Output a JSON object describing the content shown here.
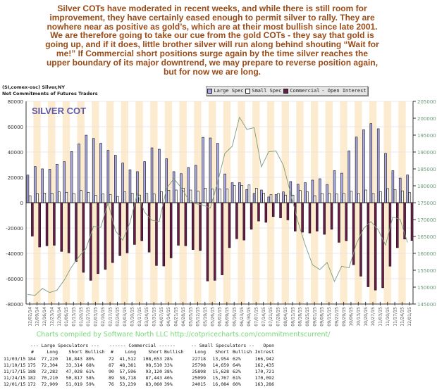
{
  "commentary": "Silver COTs have moderated in recent weeks, and while there is still room for improvement, they have certainly eased enough to permit silver to rally. They are nowhere near as positive as gold’s, which are at their most bullish since late 2001. We are therefore going to take our cue from the gold COTs - they say that gold is going up, and if it does, little brother silver will run along behind shouting “Wait for me!” If Commercial short positions surge again by the time silver reaches the upper boundary of its major downtrend, we may prepare to reverse position again, but for now we are long.",
  "header": {
    "symbol": "(SI,comex-osc) Silver,NY",
    "subtitle": "Net Commitments of Futures Traders"
  },
  "legend": [
    {
      "label": "Large Spec",
      "color": "#a9a9e8"
    },
    {
      "label": "Small Spec",
      "color": "#ffffff"
    },
    {
      "label": "Commercial",
      "color": "#6b1a4a"
    },
    {
      "label": "Open Interest",
      "color": "#7a9a7a",
      "line": true
    }
  ],
  "credit": "Charts compiled by Software North LLC  http://cotpricecharts.com/commitmentscurrent/",
  "chart_data": {
    "type": "bar",
    "title": "SILVER COT",
    "left_axis": {
      "ylim": [
        -80000,
        80000
      ],
      "ticks": [
        "80000",
        "60000",
        "40000",
        "20000",
        "0",
        "-20000",
        "-40000",
        "-60000",
        "-80000"
      ]
    },
    "right_axis": {
      "ylim": [
        145000,
        205000
      ],
      "ticks": [
        "205000",
        "200000",
        "195000",
        "190000",
        "185000",
        "180000",
        "175000",
        "170000",
        "165000",
        "160000",
        "155000",
        "150000",
        "145000"
      ]
    },
    "categories": [
      "12/02/14",
      "12/09/14",
      "12/16/14",
      "12/23/14",
      "12/30/14",
      "01/06/15",
      "01/13/15",
      "01/20/15",
      "01/27/15",
      "02/03/15",
      "02/10/15",
      "02/17/15",
      "02/24/15",
      "03/03/15",
      "03/10/15",
      "03/17/15",
      "03/24/15",
      "03/31/15",
      "04/07/15",
      "04/14/15",
      "04/21/15",
      "04/28/15",
      "05/05/15",
      "05/12/15",
      "05/19/15",
      "05/26/15",
      "06/02/15",
      "06/09/15",
      "06/16/15",
      "06/23/15",
      "06/30/15",
      "07/07/15",
      "07/14/15",
      "07/21/15",
      "07/28/15",
      "08/04/15",
      "08/11/15",
      "08/18/15",
      "08/25/15",
      "09/01/15",
      "09/08/15",
      "09/15/15",
      "09/22/15",
      "09/29/15",
      "10/06/15",
      "10/13/15",
      "10/20/15",
      "10/27/15",
      "11/03/15",
      "11/10/15",
      "11/17/15",
      "11/24/15",
      "12/01/15"
    ],
    "series": [
      {
        "name": "Large Spec",
        "color": "#a9a9e8",
        "values": [
          21800,
          28500,
          26700,
          26400,
          30400,
          32400,
          40400,
          46400,
          53300,
          50700,
          46900,
          41300,
          37500,
          31300,
          26000,
          24500,
          32400,
          43300,
          42200,
          34700,
          24500,
          22900,
          27800,
          29500,
          51600,
          51100,
          46900,
          22700,
          15800,
          15800,
          10400,
          7300,
          10000,
          4500,
          6400,
          8500,
          16700,
          14500,
          15800,
          17800,
          18900,
          14400,
          25300,
          23300,
          40900,
          51800,
          57600,
          62400,
          58377,
          38990,
          25254,
          19393,
          21890
        ]
      },
      {
        "name": "Small Spec",
        "color": "#ffffff",
        "values": [
          5500,
          7300,
          7600,
          7600,
          8500,
          8200,
          7300,
          9600,
          8200,
          5800,
          6900,
          6400,
          4900,
          8500,
          7600,
          6000,
          7300,
          6900,
          8700,
          9800,
          10000,
          11500,
          10000,
          9100,
          11500,
          10700,
          10900,
          10900,
          13600,
          13600,
          14000,
          11500,
          7500,
          6400,
          7300,
          6000,
          6000,
          9600,
          8500,
          5500,
          7300,
          7300,
          6900,
          7300,
          9100,
          7300,
          10000,
          7300,
          8764,
          11139,
          10270,
          9332,
          7931
        ]
      },
      {
        "name": "Commercial",
        "color": "#6b1a4a",
        "values": [
          -26400,
          -35000,
          -34000,
          -33600,
          -38500,
          -39600,
          -46400,
          -55000,
          -61300,
          -56000,
          -52700,
          -47300,
          -41800,
          -39600,
          -33000,
          -30000,
          -39000,
          -49600,
          -50000,
          -43600,
          -33600,
          -34000,
          -37000,
          -37800,
          -61800,
          -61300,
          -57000,
          -35500,
          -28500,
          -29500,
          -21000,
          -14500,
          -15500,
          -11000,
          -12000,
          -13600,
          -22400,
          -23300,
          -24000,
          -22400,
          -25000,
          -21000,
          -31300,
          -30000,
          -49000,
          -58000,
          -66400,
          -69000,
          -67141,
          -50129,
          -35524,
          -28725,
          -29821
        ]
      },
      {
        "name": "Open Interest",
        "axis": "right",
        "color": "#7a9a7a",
        "values": [
          147800,
          147600,
          149600,
          148400,
          149100,
          152100,
          156000,
          159000,
          161500,
          168000,
          167700,
          175000,
          166700,
          163900,
          169100,
          177800,
          172200,
          169800,
          169400,
          179200,
          182100,
          179500,
          176000,
          174700,
          174300,
          173400,
          181000,
          189600,
          191700,
          200300,
          196700,
          197200,
          185600,
          190100,
          190300,
          186100,
          177800,
          169400,
          162500,
          156600,
          155200,
          157300,
          151700,
          156200,
          155700,
          162800,
          167400,
          169400,
          166942,
          162435,
          170721,
          170092,
          163286
        ]
      }
    ]
  },
  "table": {
    "group_headers": [
      "--- Large Speculators ---",
      "------ Commercial ------",
      "-- Small Speculators --",
      "Open"
    ],
    "col_headers": [
      "#",
      "Long",
      "Short",
      "Bullish",
      "#",
      "Long",
      "Short",
      "Bullish",
      "Long",
      "Short",
      "Bullish",
      "Intrest"
    ],
    "rows": [
      [
        "11/03/15",
        "184",
        "77,220",
        "18,843",
        "80%",
        "72",
        "41,512",
        "108,653",
        "28%",
        "22718",
        "13,954",
        "62%",
        "166,942"
      ],
      [
        "11/10/15",
        "175",
        "72,304",
        "33,314",
        "68%",
        "87",
        "48,381",
        "98,510",
        "33%",
        "25798",
        "14,659",
        "64%",
        "162,435"
      ],
      [
        "11/17/15",
        "188",
        "72,282",
        "47,028",
        "61%",
        "90",
        "57,596",
        "93,120",
        "38%",
        "25898",
        "15,628",
        "62%",
        "170,721"
      ],
      [
        "11/24/15",
        "182",
        "70,210",
        "50,817",
        "58%",
        "89",
        "58,718",
        "87,443",
        "40%",
        "25099",
        "15,767",
        "61%",
        "170,092"
      ],
      [
        "12/01/15",
        "172",
        "72,909",
        "51,019",
        "59%",
        "76",
        "53,239",
        "83,060",
        "39%",
        "24015",
        "16,084",
        "60%",
        "163,286"
      ]
    ]
  }
}
